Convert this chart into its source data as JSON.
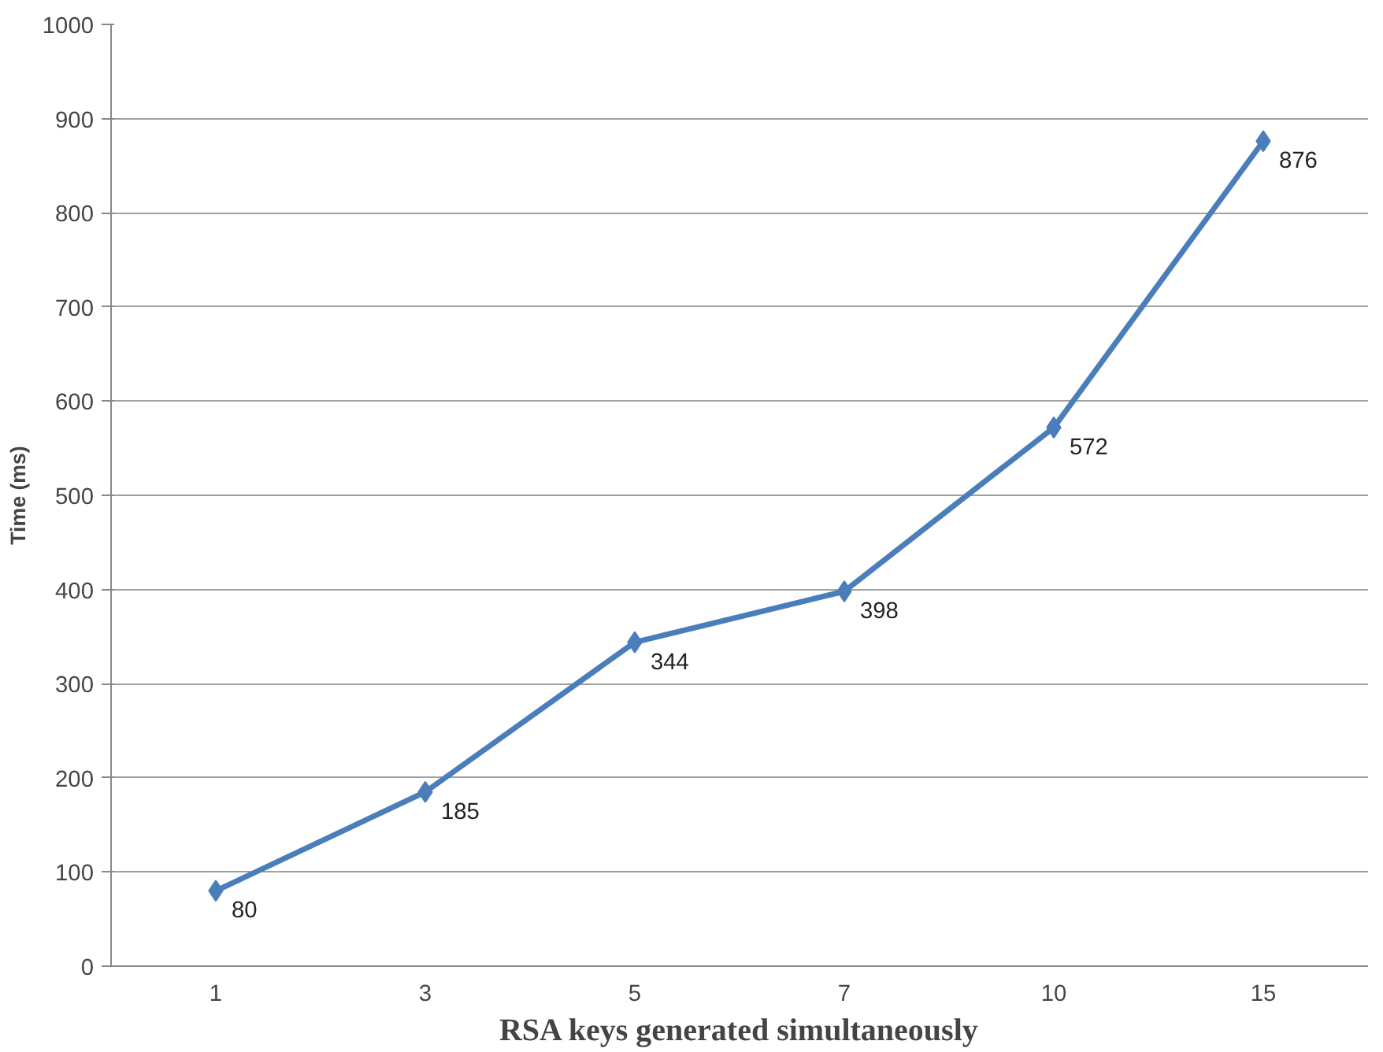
{
  "chart_data": {
    "type": "line",
    "xlabel": "RSA keys generated simultaneously",
    "ylabel": "Time (ms)",
    "categories": [
      "1",
      "3",
      "5",
      "7",
      "10",
      "15"
    ],
    "series": [
      {
        "color": "#4a7ebb",
        "values": [
          80,
          185,
          344,
          398,
          572,
          876
        ]
      }
    ],
    "ylim": [
      0,
      1000
    ],
    "yticks": [
      0,
      100,
      200,
      300,
      400,
      500,
      600,
      700,
      800,
      900,
      1000
    ],
    "grid": "y",
    "marker": "diamond",
    "line_style": "solid",
    "data_labels": true
  }
}
